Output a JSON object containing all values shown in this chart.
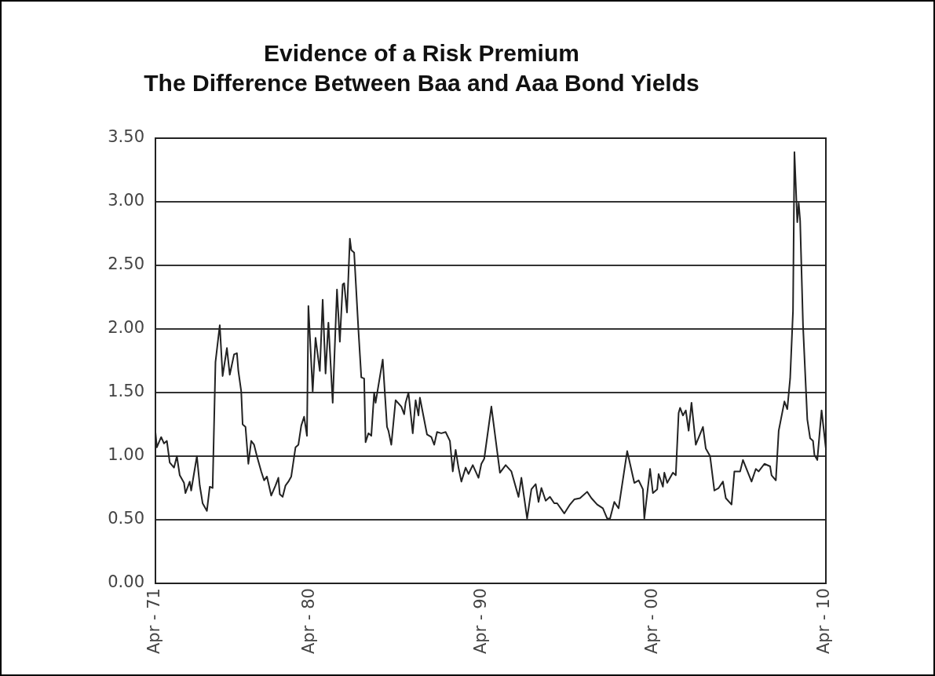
{
  "chart_data": {
    "type": "line",
    "title": "Evidence of a Risk Premium",
    "subtitle": "The Difference Between Baa and Aaa Bond Yields",
    "xlim": [
      "1971-04",
      "2010-05"
    ],
    "xticks": [
      {
        "value": "1971-04",
        "label": "Apr - 71"
      },
      {
        "value": "1980-04",
        "label": "Apr - 80"
      },
      {
        "value": "1990-04",
        "label": "Apr - 90"
      },
      {
        "value": "2000-04",
        "label": "Apr - 00"
      },
      {
        "value": "2010-04",
        "label": "Apr - 10"
      }
    ],
    "ylim": [
      0,
      3.5
    ],
    "yticks": [
      {
        "value": 0,
        "label": "0.00"
      },
      {
        "value": 0.5,
        "label": "0.50"
      },
      {
        "value": 1,
        "label": "1.00"
      },
      {
        "value": 1.5,
        "label": "1.50"
      },
      {
        "value": 2,
        "label": "2.00"
      },
      {
        "value": 2.5,
        "label": "2.50"
      },
      {
        "value": 3,
        "label": "3.00"
      },
      {
        "value": 3.5,
        "label": "3.50"
      }
    ],
    "grid": "y",
    "legend": false,
    "marker": "none",
    "line_style": "solid",
    "series": [
      {
        "color": "#222222",
        "x": [
          "1971-04",
          "1971-05",
          "1971-08",
          "1971-10",
          "1971-12",
          "1972-02",
          "1972-05",
          "1972-07",
          "1972-09",
          "1972-12",
          "1973-01",
          "1973-04",
          "1973-05",
          "1973-09",
          "1973-11",
          "1974-01",
          "1974-04",
          "1974-06",
          "1974-08",
          "1974-10",
          "1975-01",
          "1975-03",
          "1975-06",
          "1975-08",
          "1975-11",
          "1976-01",
          "1976-02",
          "1976-04",
          "1976-05",
          "1976-07",
          "1976-09",
          "1976-11",
          "1977-01",
          "1977-03",
          "1977-06",
          "1977-08",
          "1977-10",
          "1978-01",
          "1978-04",
          "1978-06",
          "1978-07",
          "1978-09",
          "1978-11",
          "1979-01",
          "1979-03",
          "1979-06",
          "1979-08",
          "1979-10",
          "1979-12",
          "1980-02",
          "1980-03",
          "1980-06",
          "1980-08",
          "1980-11",
          "1981-01",
          "1981-03",
          "1981-05",
          "1981-08",
          "1981-10",
          "1981-11",
          "1982-01",
          "1982-03",
          "1982-04",
          "1982-06",
          "1982-08",
          "1982-09",
          "1982-11",
          "1983-02",
          "1983-04",
          "1983-06",
          "1983-07",
          "1983-09",
          "1983-11",
          "1984-01",
          "1984-02",
          "1984-07",
          "1984-10",
          "1984-11",
          "1985-01",
          "1985-04",
          "1985-08",
          "1985-10",
          "1985-11",
          "1986-01",
          "1986-04",
          "1986-06",
          "1986-08",
          "1986-09",
          "1987-02",
          "1987-05",
          "1987-07",
          "1987-09",
          "1987-12",
          "1988-03",
          "1988-06",
          "1988-08",
          "1988-10",
          "1988-12",
          "1989-02",
          "1989-05",
          "1989-07",
          "1989-10",
          "1990-02",
          "1990-04",
          "1990-06",
          "1990-11",
          "1991-05",
          "1991-09",
          "1992-01",
          "1992-06",
          "1992-08",
          "1992-12",
          "1993-03",
          "1993-06",
          "1993-08",
          "1993-10",
          "1994-01",
          "1994-04",
          "1994-07",
          "1994-09",
          "1995-02",
          "1995-06",
          "1995-09",
          "1996-01",
          "1996-06",
          "1996-09",
          "1997-01",
          "1997-05",
          "1997-08",
          "1997-10",
          "1998-01",
          "1998-04",
          "1998-10",
          "1999-03",
          "1999-06",
          "1999-09",
          "1999-10",
          "2000-02",
          "2000-04",
          "2000-07",
          "2000-08",
          "2000-11",
          "2000-12",
          "2001-02",
          "2001-06",
          "2001-08",
          "2001-10",
          "2001-11",
          "2002-01",
          "2002-03",
          "2002-05",
          "2002-07",
          "2002-10",
          "2003-03",
          "2003-05",
          "2003-08",
          "2003-11",
          "2004-02",
          "2004-05",
          "2004-07",
          "2004-11",
          "2005-01",
          "2005-05",
          "2005-07",
          "2006-01",
          "2006-04",
          "2006-06",
          "2006-10",
          "2007-02",
          "2007-03",
          "2007-06",
          "2007-08",
          "2007-12",
          "2008-02",
          "2008-04",
          "2008-06",
          "2008-07",
          "2008-09",
          "2008-10",
          "2008-11",
          "2009-01",
          "2009-04",
          "2009-06",
          "2009-08",
          "2009-09",
          "2009-11",
          "2010-02",
          "2010-05"
        ],
        "values": [
          1.19,
          1.07,
          1.15,
          1.1,
          1.12,
          0.95,
          0.91,
          1.0,
          0.85,
          0.79,
          0.71,
          0.8,
          0.73,
          1.0,
          0.77,
          0.63,
          0.57,
          0.76,
          0.75,
          1.74,
          2.03,
          1.63,
          1.85,
          1.64,
          1.8,
          1.81,
          1.67,
          1.51,
          1.25,
          1.23,
          0.94,
          1.12,
          1.09,
          1.0,
          0.88,
          0.81,
          0.84,
          0.69,
          0.77,
          0.83,
          0.7,
          0.68,
          0.77,
          0.8,
          0.84,
          1.07,
          1.09,
          1.24,
          1.31,
          1.16,
          2.18,
          1.51,
          1.93,
          1.67,
          2.23,
          1.65,
          2.05,
          1.42,
          2.02,
          2.31,
          1.9,
          2.35,
          2.36,
          2.13,
          2.71,
          2.62,
          2.6,
          1.99,
          1.62,
          1.61,
          1.11,
          1.18,
          1.16,
          1.5,
          1.42,
          1.76,
          1.23,
          1.2,
          1.09,
          1.44,
          1.39,
          1.33,
          1.42,
          1.5,
          1.18,
          1.44,
          1.32,
          1.46,
          1.17,
          1.15,
          1.09,
          1.19,
          1.18,
          1.19,
          1.12,
          0.88,
          1.05,
          0.91,
          0.8,
          0.91,
          0.86,
          0.93,
          0.83,
          0.94,
          0.98,
          1.39,
          0.87,
          0.93,
          0.88,
          0.68,
          0.83,
          0.51,
          0.74,
          0.78,
          0.64,
          0.75,
          0.65,
          0.68,
          0.63,
          0.63,
          0.55,
          0.62,
          0.66,
          0.67,
          0.72,
          0.67,
          0.62,
          0.59,
          0.51,
          0.51,
          0.64,
          0.59,
          1.04,
          0.79,
          0.81,
          0.74,
          0.51,
          0.9,
          0.71,
          0.74,
          0.86,
          0.76,
          0.87,
          0.79,
          0.87,
          0.85,
          1.34,
          1.38,
          1.32,
          1.36,
          1.2,
          1.42,
          1.09,
          1.23,
          1.06,
          1.0,
          0.73,
          0.75,
          0.8,
          0.67,
          0.62,
          0.88,
          0.88,
          0.97,
          0.8,
          0.9,
          0.88,
          0.94,
          0.92,
          0.85,
          0.81,
          1.2,
          1.43,
          1.37,
          1.61,
          2.14,
          3.39,
          2.84,
          2.99,
          2.85,
          2.03,
          1.29,
          1.14,
          1.12,
          1.01,
          0.97,
          1.36,
          1.06
        ]
      }
    ]
  }
}
